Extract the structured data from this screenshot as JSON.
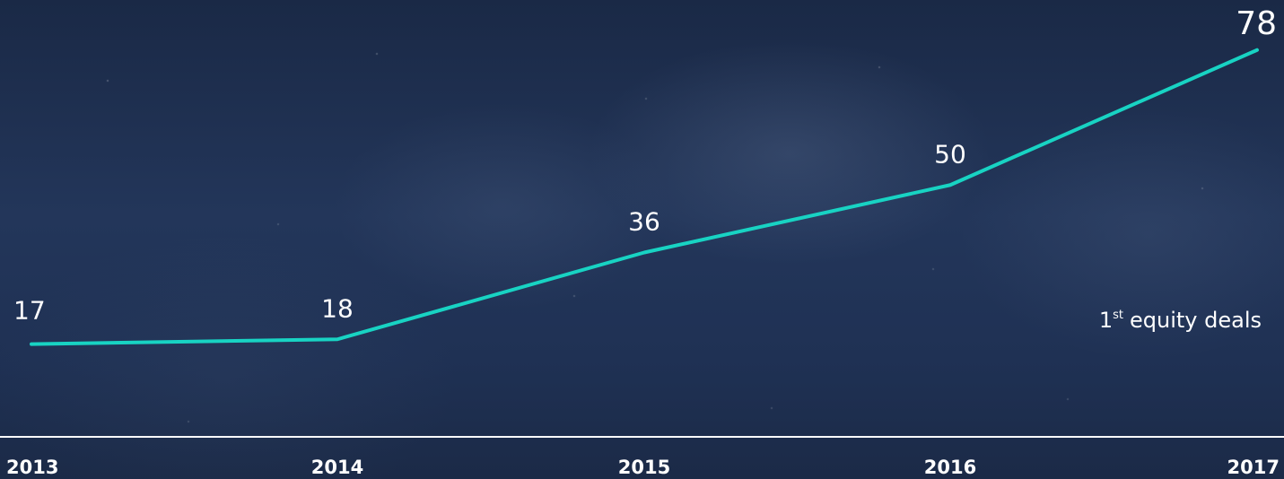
{
  "chart_data": {
    "type": "line",
    "x": [
      "2013",
      "2014",
      "2015",
      "2016",
      "2017"
    ],
    "series": [
      {
        "values": [
          17,
          18,
          36,
          50,
          78
        ]
      }
    ],
    "annotation": {
      "prefix": "1",
      "superscript": "st",
      "text": "equity deals"
    },
    "ylim": [
      0,
      80
    ],
    "grid": false,
    "colors": {
      "line": "#18d3c3",
      "axis": "#ffffff",
      "text": "#ffffff"
    }
  }
}
